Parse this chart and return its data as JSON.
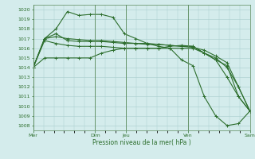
{
  "title": "Pression niveau de la mer( hPa )",
  "bg_color": "#d4ecec",
  "grid_color": "#a8cccc",
  "line_color": "#2d6e2d",
  "ylim": [
    1007.5,
    1020.5
  ],
  "yticks": [
    1008,
    1009,
    1010,
    1011,
    1012,
    1013,
    1014,
    1015,
    1016,
    1017,
    1018,
    1019,
    1020
  ],
  "xtick_labels": [
    "Mer",
    "Dim",
    "Jeu",
    "Ven",
    "Sam"
  ],
  "xtick_positions": [
    0,
    6,
    9,
    15,
    21
  ],
  "vlines": [
    0,
    6,
    9,
    15,
    21
  ],
  "xlim": [
    0,
    21
  ],
  "series": [
    [
      1014,
      1017,
      1018,
      1019.8,
      1019.4,
      1019.5,
      1019.5,
      1019.2,
      1017.5,
      1017.0,
      1016.5,
      1016.2,
      1016.0,
      1014.8,
      1014.2,
      1011.0,
      1009.0,
      1008.0,
      1008.2,
      1009.5
    ],
    [
      1014,
      1017,
      1017.5,
      1016.8,
      1016.7,
      1016.7,
      1016.7,
      1016.6,
      1016.5,
      1016.5,
      1016.4,
      1016.4,
      1016.3,
      1016.2,
      1016.2,
      1015.5,
      1014.8,
      1013.0,
      1011.0,
      1009.5
    ],
    [
      1014,
      1016.8,
      1016.5,
      1016.3,
      1016.2,
      1016.2,
      1016.2,
      1016.1,
      1016.0,
      1016.0,
      1016.0,
      1016.0,
      1016.2,
      1016.3,
      1016.2,
      1015.5,
      1014.8,
      1014.2,
      1011.0,
      1009.5
    ],
    [
      1014,
      1015.0,
      1015.0,
      1015.0,
      1015.0,
      1015.0,
      1015.5,
      1015.8,
      1016.0,
      1016.0,
      1016.0,
      1016.0,
      1016.0,
      1016.0,
      1016.0,
      1015.5,
      1015.0,
      1014.0,
      1012.0,
      1009.5
    ],
    [
      1014,
      1017.0,
      1017.2,
      1017.0,
      1016.9,
      1016.8,
      1016.8,
      1016.7,
      1016.6,
      1016.5,
      1016.5,
      1016.4,
      1016.3,
      1016.2,
      1016.1,
      1015.8,
      1015.2,
      1014.5,
      1012.0,
      1009.5
    ]
  ],
  "x_count": 20
}
